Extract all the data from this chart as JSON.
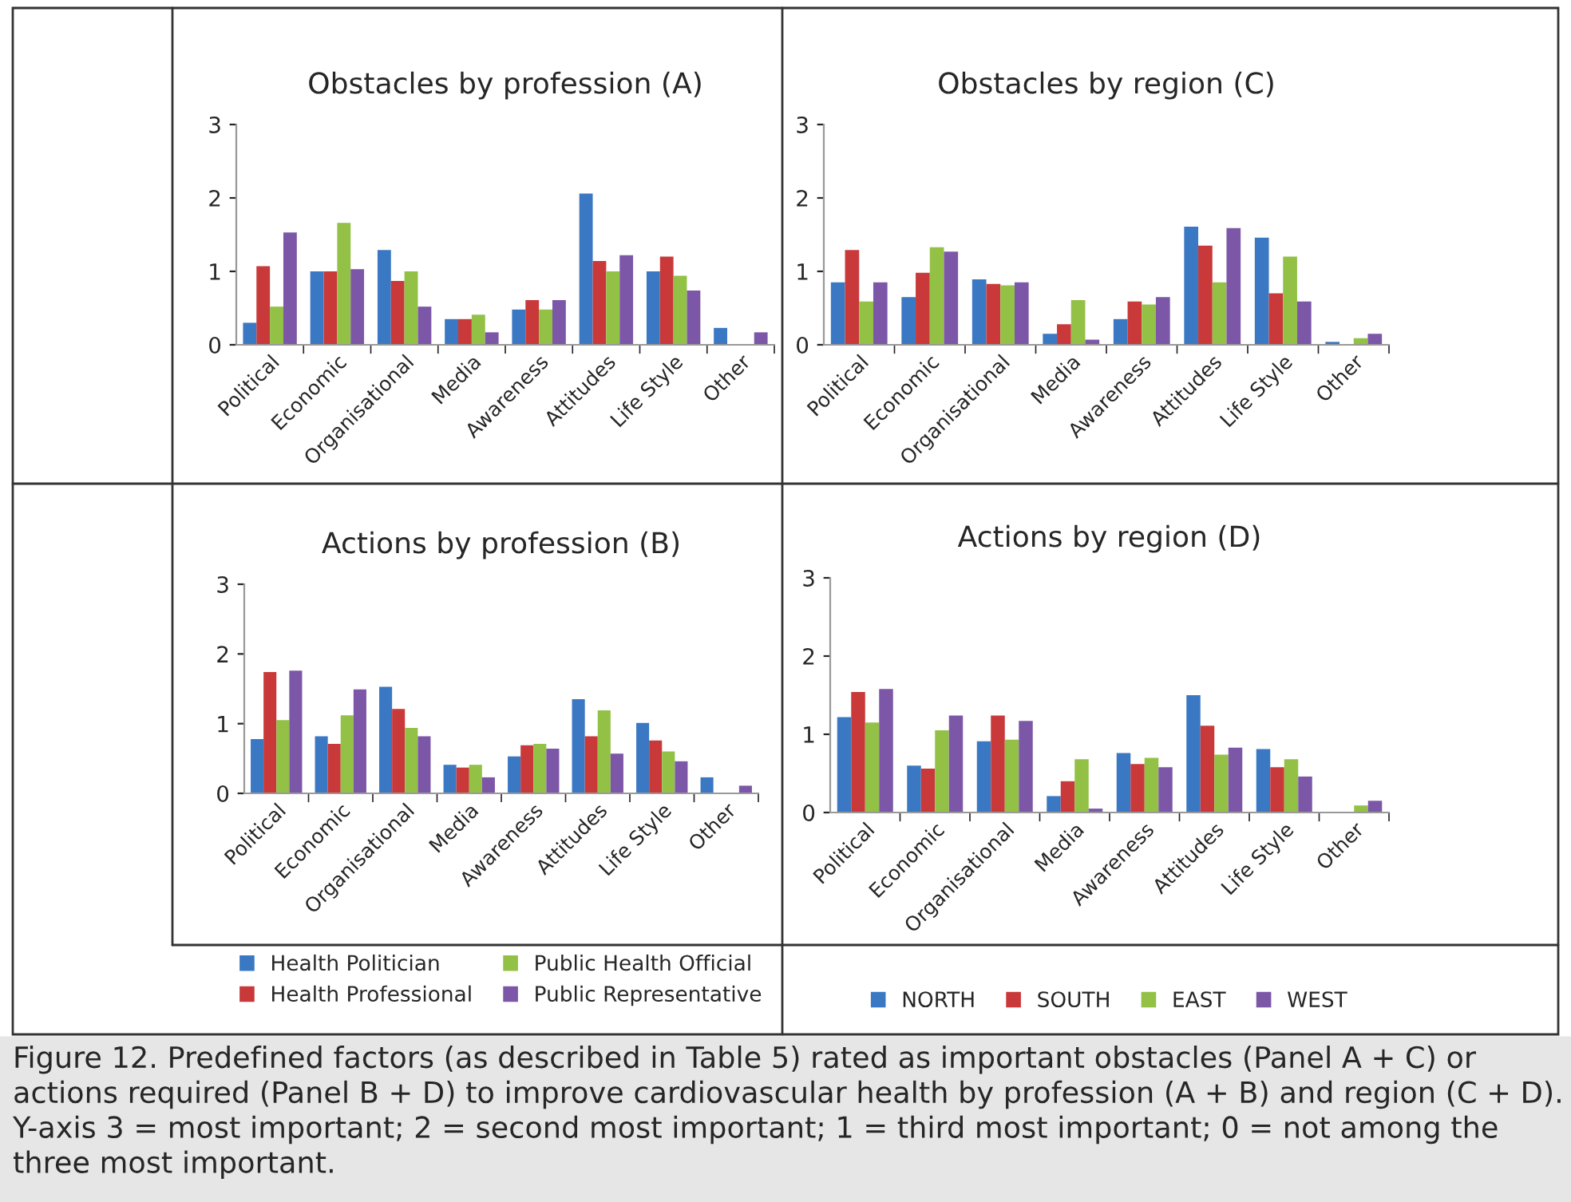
{
  "chart_data": [
    {
      "type": "bar",
      "title": "Obstacles by profession (A)",
      "categories": [
        "Political",
        "Economic",
        "Organisational",
        "Media",
        "Awareness",
        "Attitudes",
        "Life Style",
        "Other"
      ],
      "ylim": [
        0,
        3
      ],
      "yticks": [
        0,
        1,
        2,
        3
      ],
      "grid": false,
      "legend": false,
      "series": [
        {
          "color": "#3a78c3",
          "values": [
            0.3,
            1.0,
            1.29,
            0.35,
            0.48,
            2.06,
            1.0,
            0.23
          ]
        },
        {
          "color": "#c9393a",
          "values": [
            1.07,
            1.0,
            0.87,
            0.35,
            0.61,
            1.14,
            1.2,
            null
          ]
        },
        {
          "color": "#92c146",
          "values": [
            0.52,
            1.66,
            1.0,
            0.41,
            0.48,
            1.0,
            0.94,
            null
          ]
        },
        {
          "color": "#7d57a7",
          "values": [
            1.53,
            1.03,
            0.52,
            0.17,
            0.61,
            1.22,
            0.74,
            0.17
          ]
        }
      ]
    },
    {
      "type": "bar",
      "title": "Obstacles by region (C)",
      "categories": [
        "Political",
        "Economic",
        "Organisational",
        "Media",
        "Awareness",
        "Attitudes",
        "Life Style",
        "Other"
      ],
      "ylim": [
        0,
        3
      ],
      "yticks": [
        0,
        1,
        2,
        3
      ],
      "grid": false,
      "legend": false,
      "series": [
        {
          "color": "#3a78c3",
          "values": [
            0.85,
            0.65,
            0.89,
            0.15,
            0.35,
            1.61,
            1.46,
            0.04
          ]
        },
        {
          "color": "#c9393a",
          "values": [
            1.29,
            0.98,
            0.83,
            0.28,
            0.59,
            1.35,
            0.7,
            null
          ]
        },
        {
          "color": "#92c146",
          "values": [
            0.59,
            1.33,
            0.81,
            0.61,
            0.55,
            0.85,
            1.2,
            0.09
          ]
        },
        {
          "color": "#7d57a7",
          "values": [
            0.85,
            1.27,
            0.85,
            0.07,
            0.65,
            1.59,
            0.59,
            0.15
          ]
        }
      ]
    },
    {
      "type": "bar",
      "title": "Actions by profession (B)",
      "categories": [
        "Political",
        "Economic",
        "Organisational",
        "Media",
        "Awareness",
        "Attitudes",
        "Life Style",
        "Other"
      ],
      "ylim": [
        0,
        3
      ],
      "yticks": [
        0,
        1,
        2,
        3
      ],
      "grid": false,
      "legend": "bottom",
      "series": [
        {
          "name": "Health Politician",
          "color": "#3a78c3",
          "values": [
            0.78,
            0.82,
            1.53,
            0.41,
            0.53,
            1.35,
            1.01,
            0.23
          ]
        },
        {
          "name": "Health Professional",
          "color": "#c9393a",
          "values": [
            1.74,
            0.71,
            1.21,
            0.37,
            0.69,
            0.82,
            0.76,
            null
          ]
        },
        {
          "name": "Public Health Official",
          "color": "#92c146",
          "values": [
            1.05,
            1.12,
            0.94,
            0.41,
            0.71,
            1.19,
            0.6,
            null
          ]
        },
        {
          "name": "Public Representative",
          "color": "#7d57a7",
          "values": [
            1.76,
            1.49,
            0.82,
            0.23,
            0.64,
            0.57,
            0.46,
            0.11
          ]
        }
      ]
    },
    {
      "type": "bar",
      "title": "Actions by region (D)",
      "categories": [
        "Political",
        "Economic",
        "Organisational",
        "Media",
        "Awareness",
        "Attitudes",
        "Life Style",
        "Other"
      ],
      "ylim": [
        0,
        3
      ],
      "yticks": [
        0,
        1,
        2,
        3
      ],
      "grid": false,
      "legend": "bottom",
      "annotations": [
        "Figure 12. Predefined factors (as described in Table 5) rated as important obstacles (Panel A + C) or actions required (Panel B + D) to improve cardiovascular health by profession (A + B) and region (C + D). Y-axis 3 = most important; 2 = second most important; 1 = third most important; 0 = not among the three most important."
      ],
      "series": [
        {
          "name": "NORTH",
          "color": "#3a78c3",
          "values": [
            1.22,
            0.6,
            0.91,
            0.21,
            0.76,
            1.5,
            0.81,
            null
          ]
        },
        {
          "name": "SOUTH",
          "color": "#c9393a",
          "values": [
            1.54,
            0.56,
            1.24,
            0.4,
            0.62,
            1.11,
            0.58,
            null
          ]
        },
        {
          "name": "EAST",
          "color": "#92c146",
          "values": [
            1.15,
            1.05,
            0.93,
            0.68,
            0.7,
            0.74,
            0.68,
            0.09
          ]
        },
        {
          "name": "WEST",
          "color": "#7d57a7",
          "values": [
            1.58,
            1.24,
            1.17,
            0.05,
            0.58,
            0.83,
            0.46,
            0.15
          ]
        }
      ]
    }
  ]
}
